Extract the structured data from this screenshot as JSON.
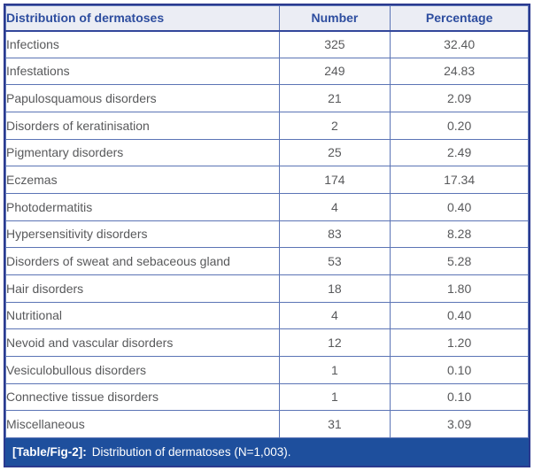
{
  "table": {
    "columns": {
      "label": "Distribution of dermatoses",
      "number": "Number",
      "percentage": "Percentage"
    },
    "rows": [
      {
        "label": "Infections",
        "number": "325",
        "percentage": "32.40"
      },
      {
        "label": "Infestations",
        "number": "249",
        "percentage": "24.83"
      },
      {
        "label": "Papulosquamous disorders",
        "number": "21",
        "percentage": "2.09"
      },
      {
        "label": "Disorders of keratinisation",
        "number": "2",
        "percentage": "0.20"
      },
      {
        "label": "Pigmentary disorders",
        "number": "25",
        "percentage": "2.49"
      },
      {
        "label": "Eczemas",
        "number": "174",
        "percentage": "17.34"
      },
      {
        "label": "Photodermatitis",
        "number": "4",
        "percentage": "0.40"
      },
      {
        "label": "Hypersensitivity disorders",
        "number": "83",
        "percentage": "8.28"
      },
      {
        "label": "Disorders of sweat and sebaceous gland",
        "number": "53",
        "percentage": "5.28"
      },
      {
        "label": "Hair disorders",
        "number": "18",
        "percentage": "1.80"
      },
      {
        "label": "Nutritional",
        "number": "4",
        "percentage": "0.40"
      },
      {
        "label": "Nevoid and vascular disorders",
        "number": "12",
        "percentage": "1.20"
      },
      {
        "label": "Vesiculobullous disorders",
        "number": "1",
        "percentage": "0.10"
      },
      {
        "label": "Connective tissue disorders",
        "number": "1",
        "percentage": "0.10"
      },
      {
        "label": "Miscellaneous",
        "number": "31",
        "percentage": "3.09"
      }
    ],
    "caption": {
      "label": "[Table/Fig-2]:",
      "text": "Distribution of dermatoses (N=1,003)."
    }
  },
  "colors": {
    "outer_border": "#2b3a8f",
    "inner_border": "#5b74b5",
    "header_bg": "#ebedf4",
    "header_text": "#2d4d9f",
    "body_text": "#58595b",
    "caption_bg": "#1e4f9d",
    "caption_text": "#ffffff"
  }
}
